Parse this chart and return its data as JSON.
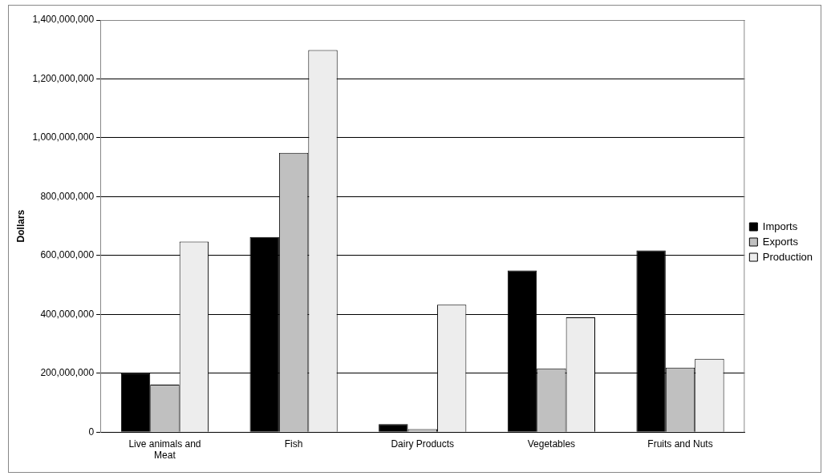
{
  "chart_data": {
    "type": "bar",
    "ylabel": "Dollars",
    "categories": [
      "Live animals and Meat",
      "Fish",
      "Dairy Products",
      "Vegetables",
      "Fruits and Nuts"
    ],
    "series": [
      {
        "name": "Imports",
        "color": "#000000",
        "values": [
          200000000,
          663000000,
          27000000,
          549000000,
          617000000
        ]
      },
      {
        "name": "Exports",
        "color": "#c0c0c0",
        "values": [
          161000000,
          949000000,
          10000000,
          216000000,
          219000000
        ]
      },
      {
        "name": "Production",
        "color": "#ededed",
        "values": [
          647000000,
          1298000000,
          433000000,
          390000000,
          249000000
        ]
      }
    ],
    "ylim": [
      0,
      1400000000
    ],
    "yticks": [
      0,
      {
        "value": 200000000,
        "label": "200,000,000"
      },
      {
        "value": 400000000,
        "label": "400,000,000"
      },
      {
        "value": 600000000,
        "label": "600,000,000"
      },
      {
        "value": 800000000,
        "label": "800,000,000"
      },
      {
        "value": 1000000000,
        "label": "1,000,000,000"
      },
      {
        "value": 1200000000,
        "label": "1,200,000,000"
      },
      {
        "value": 1400000000,
        "label": "1,400,000,000"
      }
    ],
    "grid": "y",
    "legend": "right"
  }
}
